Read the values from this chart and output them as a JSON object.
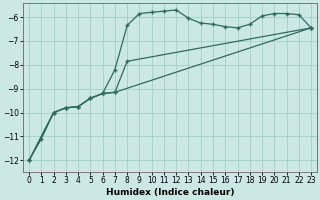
{
  "xlabel": "Humidex (Indice chaleur)",
  "bg_color": "#cce8e4",
  "line_color": "#2e6b5e",
  "grid_color": "#99ccbb",
  "xlim": [
    -0.5,
    23.5
  ],
  "ylim": [
    -12.5,
    -5.4
  ],
  "yticks": [
    -12,
    -11,
    -10,
    -9,
    -8,
    -7,
    -6
  ],
  "xticks": [
    0,
    1,
    2,
    3,
    4,
    5,
    6,
    7,
    8,
    9,
    10,
    11,
    12,
    13,
    14,
    15,
    16,
    17,
    18,
    19,
    20,
    21,
    22,
    23
  ],
  "line1_x": [
    0,
    1,
    2,
    3,
    4,
    5,
    6,
    7,
    8,
    9,
    10,
    11,
    12,
    13,
    14,
    15,
    16,
    17,
    18,
    19,
    20,
    21,
    22,
    23
  ],
  "line1_y": [
    -12.0,
    -11.1,
    -10.0,
    -9.8,
    -9.75,
    -9.4,
    -9.2,
    -8.2,
    -6.35,
    -5.85,
    -5.8,
    -5.75,
    -5.7,
    -6.05,
    -6.25,
    -6.3,
    -6.4,
    -6.45,
    -6.3,
    -5.95,
    -5.85,
    -5.85,
    -5.9,
    -6.45
  ],
  "line2_x": [
    0,
    2,
    3,
    4,
    5,
    6,
    7,
    23
  ],
  "line2_y": [
    -12.0,
    -10.0,
    -9.8,
    -9.75,
    -9.4,
    -9.2,
    -9.15,
    -6.45
  ],
  "line3_x": [
    0,
    2,
    3,
    4,
    5,
    6,
    7,
    8,
    23
  ],
  "line3_y": [
    -12.0,
    -10.0,
    -9.8,
    -9.75,
    -9.4,
    -9.2,
    -9.15,
    -7.85,
    -6.45
  ]
}
